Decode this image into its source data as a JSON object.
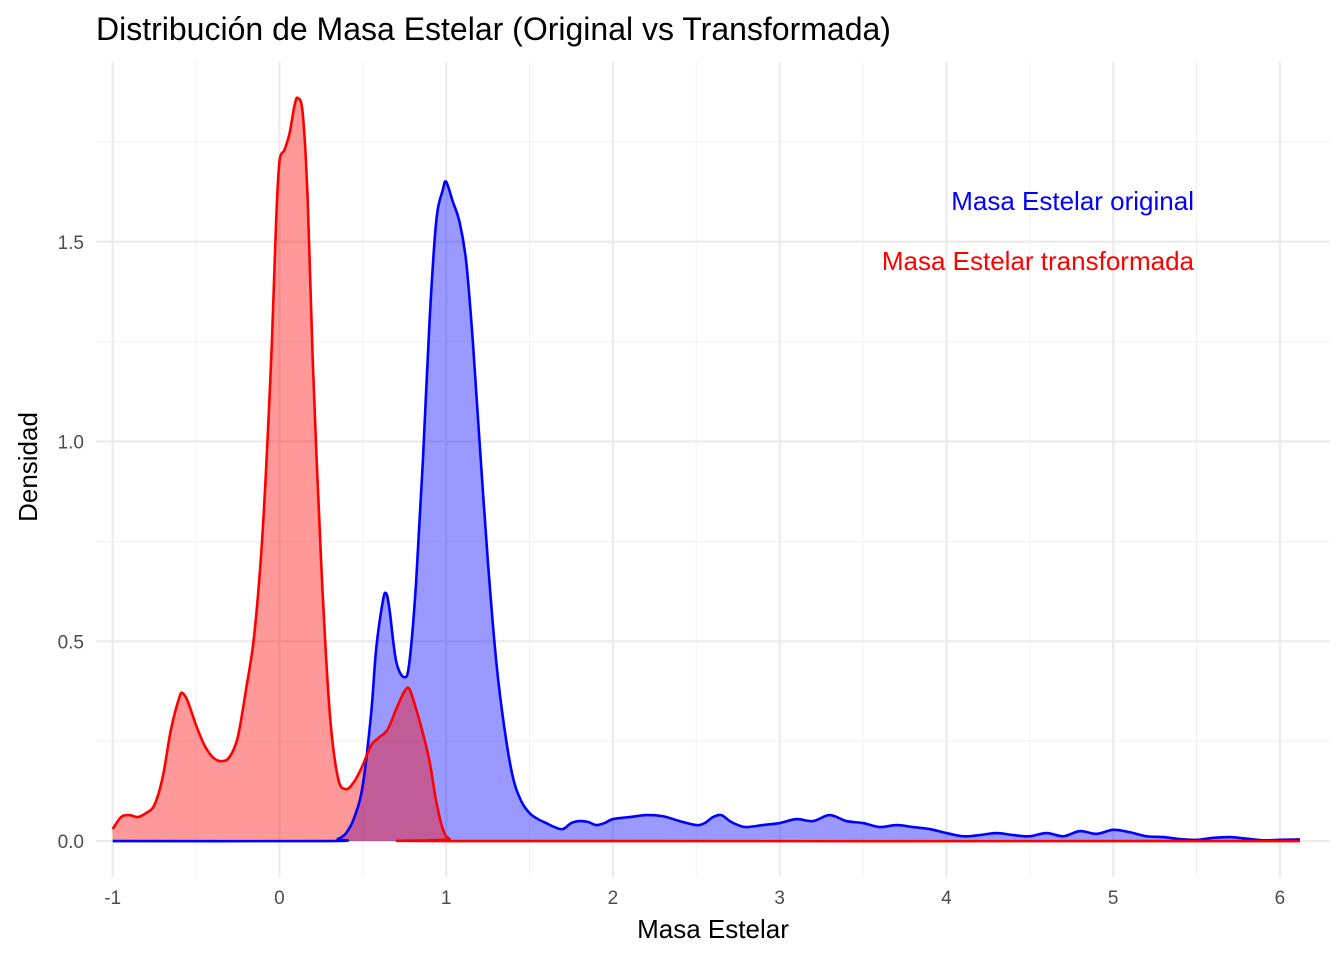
{
  "chart_data": {
    "type": "area",
    "title": "Distribución de Masa Estelar (Original vs Transformada)",
    "xlabel": "Masa Estelar",
    "ylabel": "Densidad",
    "xlim": [
      -1.1,
      6.3
    ],
    "ylim": [
      -0.09,
      1.95
    ],
    "x_ticks": [
      -1,
      0,
      1,
      2,
      3,
      4,
      5,
      6
    ],
    "x_tick_labels": [
      "-1",
      "0",
      "1",
      "2",
      "3",
      "4",
      "5",
      "6"
    ],
    "y_ticks": [
      0.0,
      0.5,
      1.0,
      1.5
    ],
    "y_tick_labels": [
      "0.0",
      "0.5",
      "1.0",
      "1.5"
    ],
    "grid": true,
    "legend": "none",
    "annotations": [
      {
        "text": "Masa Estelar original",
        "color": "#0000ff",
        "series": "original"
      },
      {
        "text": "Masa Estelar transformada",
        "color": "#ff0000",
        "series": "transformada"
      }
    ],
    "series": [
      {
        "key": "original",
        "color": "#0000ff",
        "fill": "#0000ff",
        "fill_opacity": 0.4,
        "points": [
          [
            -1.0,
            0.0
          ],
          [
            0.3,
            0.0
          ],
          [
            0.35,
            0.005
          ],
          [
            0.4,
            0.02
          ],
          [
            0.45,
            0.06
          ],
          [
            0.5,
            0.14
          ],
          [
            0.55,
            0.32
          ],
          [
            0.58,
            0.48
          ],
          [
            0.62,
            0.6
          ],
          [
            0.64,
            0.62
          ],
          [
            0.66,
            0.58
          ],
          [
            0.7,
            0.45
          ],
          [
            0.75,
            0.41
          ],
          [
            0.78,
            0.45
          ],
          [
            0.82,
            0.65
          ],
          [
            0.86,
            0.95
          ],
          [
            0.9,
            1.3
          ],
          [
            0.94,
            1.55
          ],
          [
            0.98,
            1.63
          ],
          [
            1.0,
            1.65
          ],
          [
            1.04,
            1.6
          ],
          [
            1.08,
            1.55
          ],
          [
            1.12,
            1.45
          ],
          [
            1.16,
            1.25
          ],
          [
            1.2,
            1.0
          ],
          [
            1.25,
            0.7
          ],
          [
            1.3,
            0.45
          ],
          [
            1.35,
            0.28
          ],
          [
            1.4,
            0.16
          ],
          [
            1.45,
            0.1
          ],
          [
            1.5,
            0.07
          ],
          [
            1.55,
            0.055
          ],
          [
            1.6,
            0.045
          ],
          [
            1.65,
            0.035
          ],
          [
            1.7,
            0.03
          ],
          [
            1.75,
            0.045
          ],
          [
            1.8,
            0.05
          ],
          [
            1.85,
            0.048
          ],
          [
            1.9,
            0.04
          ],
          [
            1.95,
            0.045
          ],
          [
            2.0,
            0.055
          ],
          [
            2.1,
            0.06
          ],
          [
            2.2,
            0.065
          ],
          [
            2.3,
            0.062
          ],
          [
            2.4,
            0.05
          ],
          [
            2.5,
            0.04
          ],
          [
            2.55,
            0.045
          ],
          [
            2.6,
            0.06
          ],
          [
            2.65,
            0.065
          ],
          [
            2.7,
            0.05
          ],
          [
            2.75,
            0.04
          ],
          [
            2.8,
            0.035
          ],
          [
            2.9,
            0.04
          ],
          [
            3.0,
            0.045
          ],
          [
            3.1,
            0.055
          ],
          [
            3.2,
            0.05
          ],
          [
            3.3,
            0.065
          ],
          [
            3.4,
            0.05
          ],
          [
            3.5,
            0.045
          ],
          [
            3.6,
            0.035
          ],
          [
            3.7,
            0.04
          ],
          [
            3.8,
            0.035
          ],
          [
            3.9,
            0.03
          ],
          [
            4.0,
            0.02
          ],
          [
            4.1,
            0.012
          ],
          [
            4.2,
            0.015
          ],
          [
            4.3,
            0.02
          ],
          [
            4.4,
            0.015
          ],
          [
            4.5,
            0.012
          ],
          [
            4.6,
            0.02
          ],
          [
            4.7,
            0.012
          ],
          [
            4.8,
            0.025
          ],
          [
            4.9,
            0.018
          ],
          [
            5.0,
            0.028
          ],
          [
            5.1,
            0.022
          ],
          [
            5.2,
            0.012
          ],
          [
            5.3,
            0.01
          ],
          [
            5.4,
            0.005
          ],
          [
            5.5,
            0.003
          ],
          [
            5.6,
            0.008
          ],
          [
            5.7,
            0.01
          ],
          [
            5.8,
            0.006
          ],
          [
            5.9,
            0.002
          ],
          [
            6.0,
            0.003
          ],
          [
            6.12,
            0.004
          ]
        ]
      },
      {
        "key": "transformada",
        "color": "#ff0000",
        "fill": "#ff0000",
        "fill_opacity": 0.4,
        "points": [
          [
            -1.0,
            0.03
          ],
          [
            -0.95,
            0.06
          ],
          [
            -0.9,
            0.065
          ],
          [
            -0.85,
            0.06
          ],
          [
            -0.8,
            0.07
          ],
          [
            -0.75,
            0.09
          ],
          [
            -0.7,
            0.16
          ],
          [
            -0.65,
            0.28
          ],
          [
            -0.6,
            0.36
          ],
          [
            -0.58,
            0.37
          ],
          [
            -0.55,
            0.35
          ],
          [
            -0.5,
            0.29
          ],
          [
            -0.45,
            0.24
          ],
          [
            -0.4,
            0.21
          ],
          [
            -0.35,
            0.2
          ],
          [
            -0.3,
            0.21
          ],
          [
            -0.25,
            0.26
          ],
          [
            -0.2,
            0.38
          ],
          [
            -0.15,
            0.52
          ],
          [
            -0.1,
            0.78
          ],
          [
            -0.05,
            1.2
          ],
          [
            -0.02,
            1.55
          ],
          [
            0.0,
            1.7
          ],
          [
            0.03,
            1.73
          ],
          [
            0.06,
            1.77
          ],
          [
            0.09,
            1.84
          ],
          [
            0.11,
            1.86
          ],
          [
            0.14,
            1.82
          ],
          [
            0.17,
            1.6
          ],
          [
            0.2,
            1.2
          ],
          [
            0.25,
            0.7
          ],
          [
            0.3,
            0.33
          ],
          [
            0.35,
            0.16
          ],
          [
            0.4,
            0.13
          ],
          [
            0.45,
            0.15
          ],
          [
            0.5,
            0.19
          ],
          [
            0.55,
            0.24
          ],
          [
            0.6,
            0.26
          ],
          [
            0.65,
            0.28
          ],
          [
            0.7,
            0.33
          ],
          [
            0.75,
            0.375
          ],
          [
            0.78,
            0.38
          ],
          [
            0.82,
            0.33
          ],
          [
            0.86,
            0.27
          ],
          [
            0.9,
            0.2
          ],
          [
            0.94,
            0.1
          ],
          [
            0.98,
            0.03
          ],
          [
            1.02,
            0.005
          ],
          [
            1.1,
            0.0
          ],
          [
            6.12,
            0.0
          ]
        ]
      }
    ]
  }
}
